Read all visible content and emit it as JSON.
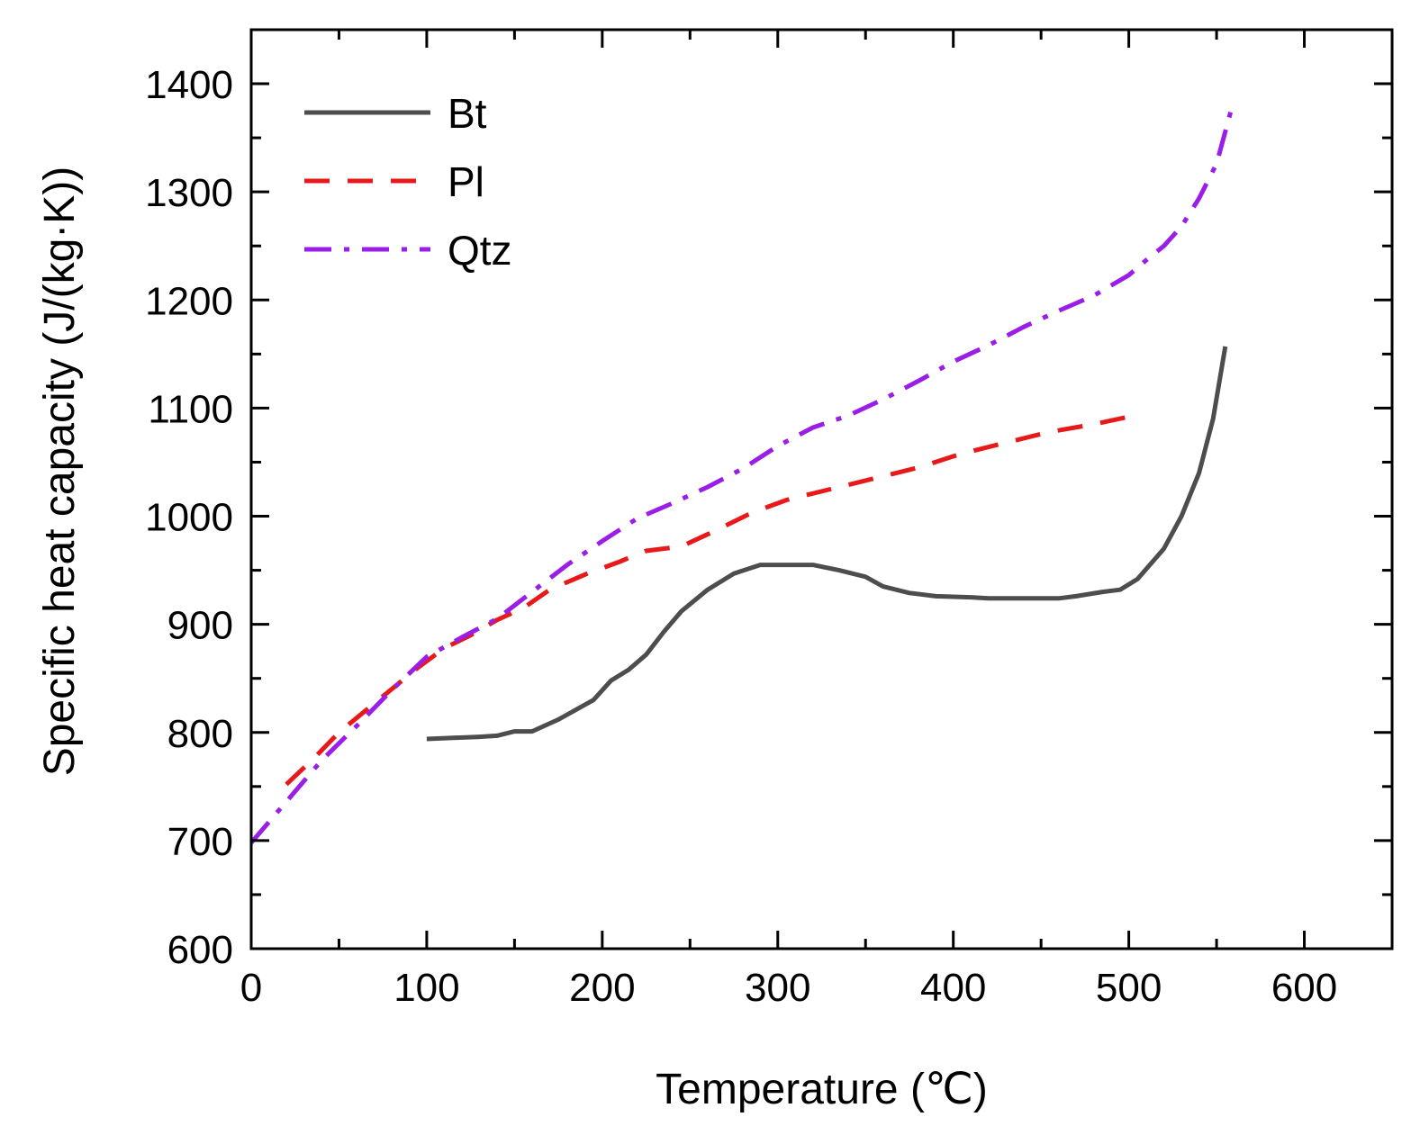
{
  "chart_data": {
    "type": "line",
    "title": "",
    "xlabel": "Temperature (℃)",
    "ylabel": "Specific heat capacity (J/(kg·K))",
    "xlim": [
      0,
      650
    ],
    "ylim": [
      600,
      1450
    ],
    "x_ticks": [
      0,
      100,
      200,
      300,
      400,
      500,
      600
    ],
    "y_ticks": [
      600,
      700,
      800,
      900,
      1000,
      1100,
      1200,
      1300,
      1400
    ],
    "legend_position": "top-left",
    "series": [
      {
        "name": "Bt",
        "color": "#4d4d4d",
        "style": "solid",
        "x": [
          100,
          115,
          130,
          140,
          150,
          160,
          175,
          195,
          205,
          215,
          225,
          235,
          245,
          260,
          275,
          290,
          300,
          320,
          335,
          350,
          360,
          375,
          390,
          410,
          420,
          440,
          460,
          470,
          485,
          495,
          505,
          520,
          530,
          540,
          548,
          555
        ],
        "y": [
          794,
          795,
          796,
          797,
          801,
          801,
          812,
          830,
          848,
          858,
          872,
          893,
          912,
          932,
          947,
          955,
          955,
          955,
          950,
          944,
          935,
          929,
          926,
          925,
          924,
          924,
          924,
          926,
          930,
          932,
          942,
          970,
          1000,
          1040,
          1090,
          1157
        ]
      },
      {
        "name": "Pl",
        "color": "#e8191b",
        "style": "dashed",
        "x": [
          20,
          35,
          50,
          65,
          80,
          95,
          110,
          125,
          140,
          155,
          170,
          190,
          210,
          225,
          245,
          265,
          285,
          305,
          330,
          355,
          380,
          405,
          430,
          455,
          480,
          500
        ],
        "y": [
          752,
          775,
          800,
          820,
          840,
          860,
          878,
          890,
          904,
          915,
          932,
          946,
          958,
          968,
          972,
          987,
          1003,
          1015,
          1025,
          1035,
          1045,
          1058,
          1068,
          1078,
          1085,
          1092
        ]
      },
      {
        "name": "Qtz",
        "color": "#9a1ee8",
        "style": "dash-dot",
        "x": [
          0,
          20,
          40,
          60,
          80,
          100,
          120,
          140,
          160,
          180,
          200,
          220,
          240,
          260,
          280,
          300,
          320,
          340,
          360,
          380,
          400,
          420,
          440,
          460,
          480,
          500,
          510,
          520,
          530,
          540,
          550,
          558
        ],
        "y": [
          698,
          736,
          774,
          806,
          839,
          870,
          888,
          905,
          930,
          955,
          977,
          998,
          1012,
          1027,
          1044,
          1065,
          1082,
          1093,
          1108,
          1125,
          1143,
          1158,
          1175,
          1190,
          1204,
          1223,
          1237,
          1250,
          1268,
          1294,
          1326,
          1374
        ]
      }
    ]
  }
}
